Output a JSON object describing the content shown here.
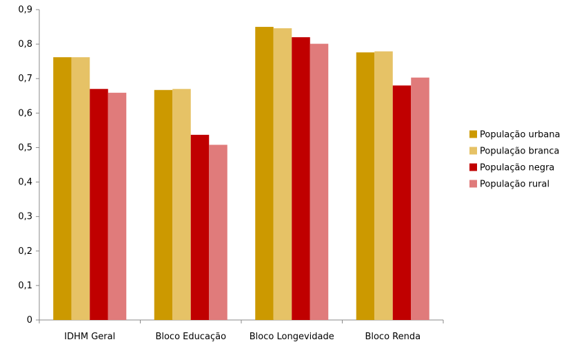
{
  "chart_data": {
    "type": "bar",
    "categories": [
      "IDHM Geral",
      "Bloco Educação",
      "Bloco Longevidade",
      "Bloco Renda"
    ],
    "series": [
      {
        "name": "População urbana",
        "color": "#cc9900",
        "values": [
          0.762,
          0.667,
          0.85,
          0.776
        ]
      },
      {
        "name": "População branca",
        "color": "#e6c266",
        "values": [
          0.762,
          0.67,
          0.846,
          0.779
        ]
      },
      {
        "name": "População negra",
        "color": "#c00000",
        "values": [
          0.67,
          0.537,
          0.82,
          0.68
        ]
      },
      {
        "name": "População rural",
        "color": "#e07b7b",
        "values": [
          0.659,
          0.508,
          0.801,
          0.703
        ]
      }
    ],
    "ylim": [
      0,
      0.9
    ],
    "yticks": [
      "0",
      "0,1",
      "0,2",
      "0,3",
      "0,4",
      "0,5",
      "0,6",
      "0,7",
      "0,8",
      "0,9"
    ],
    "grid": false,
    "legend_position": "right"
  }
}
